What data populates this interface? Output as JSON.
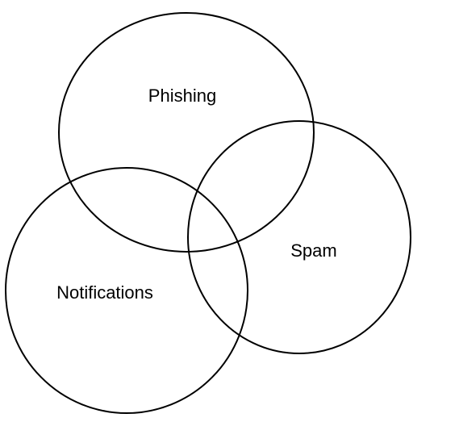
{
  "diagram": {
    "type": "venn",
    "stroke_color": "#000000",
    "background": "#ffffff",
    "sets": [
      {
        "label": "Phishing"
      },
      {
        "label": "Spam"
      },
      {
        "label": "Notifications"
      }
    ]
  }
}
